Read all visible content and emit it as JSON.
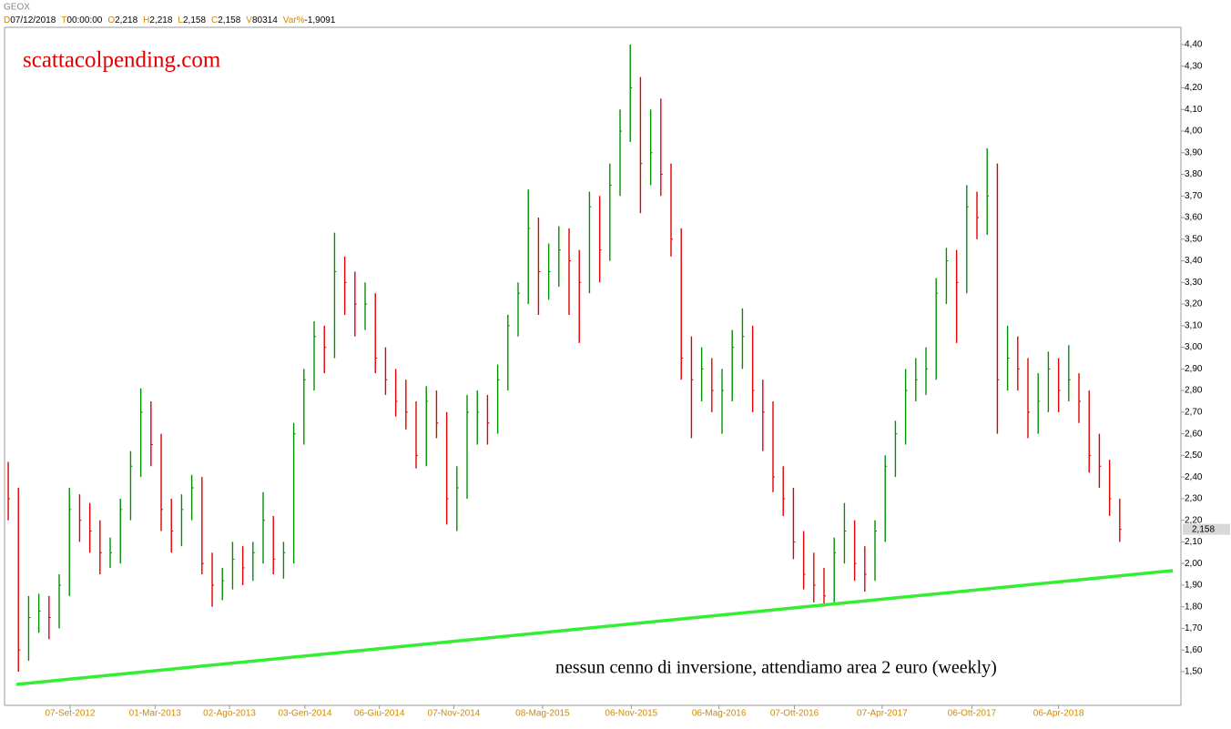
{
  "chart_data": {
    "type": "ohlc",
    "symbol": "GEOX",
    "header": [
      {
        "key": "D",
        "value": "07/12/2018"
      },
      {
        "key": "T",
        "value": "00:00:00"
      },
      {
        "key": "O",
        "value": "2,218"
      },
      {
        "key": "H",
        "value": "2,218"
      },
      {
        "key": "L",
        "value": "2,158"
      },
      {
        "key": "C",
        "value": "2,158"
      },
      {
        "key": "V",
        "value": "80314"
      },
      {
        "key": "Var%",
        "value": "-1,9091"
      }
    ],
    "watermark": "scattacolpending.com",
    "annotation": "nessun cenno di inversione, attendiamo area 2 euro (weekly)",
    "up_color": "#009000",
    "down_color": "#e00000",
    "high": [
      2.47,
      2.35,
      1.85,
      1.86,
      1.85,
      1.95,
      2.35,
      2.32,
      2.28,
      2.2,
      2.12,
      2.3,
      2.52,
      2.81,
      2.75,
      2.6,
      2.3,
      2.32,
      2.41,
      2.4,
      2.05,
      1.98,
      2.1,
      2.08,
      2.1,
      2.33,
      2.22,
      2.1,
      2.65,
      2.9,
      3.12,
      3.1,
      3.53,
      3.42,
      3.35,
      3.3,
      3.25,
      3.0,
      2.9,
      2.85,
      2.75,
      2.82,
      2.8,
      2.7,
      2.45,
      2.78,
      2.8,
      2.78,
      2.92,
      3.15,
      3.3,
      3.73,
      3.6,
      3.48,
      3.56,
      3.55,
      3.45,
      3.72,
      3.7,
      3.85,
      4.1,
      4.4,
      4.25,
      4.1,
      4.15,
      3.85,
      3.55,
      3.05,
      3.0,
      2.95,
      2.9,
      3.08,
      3.18,
      3.1,
      2.85,
      2.75,
      2.45,
      2.35,
      2.15,
      2.05,
      1.98,
      2.12,
      2.28,
      2.2,
      2.08,
      2.2,
      2.5,
      2.66,
      2.9,
      2.95,
      3.0,
      3.32,
      3.46,
      3.45,
      3.75,
      3.72,
      3.92,
      3.85,
      3.1,
      3.05,
      2.95,
      2.88,
      2.98,
      2.95,
      3.01,
      2.88,
      2.8,
      2.6,
      2.48,
      2.3
    ],
    "low": [
      2.2,
      1.5,
      1.55,
      1.68,
      1.65,
      1.7,
      1.85,
      2.1,
      2.05,
      1.95,
      1.98,
      2.0,
      2.2,
      2.4,
      2.45,
      2.15,
      2.05,
      2.08,
      2.2,
      1.95,
      1.8,
      1.83,
      1.88,
      1.9,
      1.92,
      2.0,
      1.95,
      1.93,
      2.0,
      2.55,
      2.8,
      2.88,
      2.95,
      3.15,
      3.05,
      3.08,
      2.88,
      2.78,
      2.68,
      2.62,
      2.44,
      2.45,
      2.58,
      2.18,
      2.15,
      2.3,
      2.55,
      2.55,
      2.6,
      2.8,
      3.05,
      3.2,
      3.15,
      3.22,
      3.28,
      3.15,
      3.02,
      3.25,
      3.3,
      3.4,
      3.7,
      3.95,
      3.62,
      3.75,
      3.7,
      3.42,
      2.85,
      2.58,
      2.75,
      2.7,
      2.6,
      2.75,
      2.9,
      2.7,
      2.52,
      2.33,
      2.22,
      2.02,
      1.88,
      1.82,
      1.8,
      1.82,
      2.0,
      1.92,
      1.87,
      1.92,
      2.1,
      2.4,
      2.55,
      2.75,
      2.78,
      2.85,
      3.2,
      3.02,
      3.25,
      3.5,
      3.52,
      2.6,
      2.8,
      2.8,
      2.58,
      2.6,
      2.7,
      2.7,
      2.75,
      2.65,
      2.42,
      2.35,
      2.22,
      2.1
    ],
    "close": [
      2.3,
      1.6,
      1.75,
      1.78,
      1.75,
      1.9,
      2.25,
      2.2,
      2.15,
      2.05,
      2.05,
      2.25,
      2.45,
      2.7,
      2.55,
      2.25,
      2.15,
      2.25,
      2.35,
      2.0,
      1.9,
      1.92,
      2.02,
      1.98,
      2.05,
      2.2,
      2.02,
      2.05,
      2.6,
      2.85,
      3.05,
      3.0,
      3.35,
      3.3,
      3.2,
      3.2,
      2.95,
      2.85,
      2.75,
      2.7,
      2.5,
      2.75,
      2.65,
      2.3,
      2.35,
      2.7,
      2.7,
      2.65,
      2.85,
      3.1,
      3.25,
      3.55,
      3.35,
      3.35,
      3.45,
      3.4,
      3.3,
      3.65,
      3.45,
      3.75,
      4.0,
      4.2,
      3.85,
      3.9,
      3.8,
      3.5,
      2.95,
      2.85,
      2.9,
      2.8,
      2.8,
      3.0,
      3.05,
      2.8,
      2.7,
      2.4,
      2.3,
      2.1,
      1.95,
      1.9,
      1.85,
      2.05,
      2.15,
      2.0,
      1.95,
      2.15,
      2.45,
      2.6,
      2.8,
      2.85,
      2.9,
      3.25,
      3.4,
      3.3,
      3.65,
      3.6,
      3.7,
      2.85,
      2.95,
      2.9,
      2.7,
      2.75,
      2.9,
      2.8,
      2.85,
      2.75,
      2.5,
      2.45,
      2.3,
      2.158
    ],
    "last_price": {
      "value": 2.158,
      "label": "2,158"
    },
    "trendline": {
      "x": [
        0.8,
        114.2
      ],
      "y": [
        1.441,
        1.967
      ],
      "color": "#33ee33"
    },
    "xlim": [
      -0.36,
      115
    ],
    "xticks": [
      {
        "value": 6.07,
        "label": "07-Set-2012"
      },
      {
        "value": 14.4,
        "label": "01-Mar-2013"
      },
      {
        "value": 21.7,
        "label": "02-Ago-2013"
      },
      {
        "value": 29.1,
        "label": "03-Gen-2014"
      },
      {
        "value": 36.4,
        "label": "06-Giu-2014"
      },
      {
        "value": 43.7,
        "label": "07-Nov-2014"
      },
      {
        "value": 52.4,
        "label": "08-Mag-2015"
      },
      {
        "value": 61.1,
        "label": "06-Nov-2015"
      },
      {
        "value": 69.7,
        "label": "06-Mag-2016"
      },
      {
        "value": 77.1,
        "label": "07-Ott-2016"
      },
      {
        "value": 85.7,
        "label": "07-Apr-2017"
      },
      {
        "value": 94.5,
        "label": "06-Ott-2017"
      },
      {
        "value": 103,
        "label": "06-Apr-2018"
      }
    ],
    "ylim": [
      1.344,
      4.48
    ],
    "yticks": [
      {
        "value": 1.5,
        "label": "1,50"
      },
      {
        "value": 1.6,
        "label": "1,60"
      },
      {
        "value": 1.7,
        "label": "1,70"
      },
      {
        "value": 1.8,
        "label": "1,80"
      },
      {
        "value": 1.9,
        "label": "1,90"
      },
      {
        "value": 2.0,
        "label": "2,00"
      },
      {
        "value": 2.1,
        "label": "2,10"
      },
      {
        "value": 2.2,
        "label": "2,20"
      },
      {
        "value": 2.3,
        "label": "2,30"
      },
      {
        "value": 2.4,
        "label": "2,40"
      },
      {
        "value": 2.5,
        "label": "2,50"
      },
      {
        "value": 2.6,
        "label": "2,60"
      },
      {
        "value": 2.7,
        "label": "2,70"
      },
      {
        "value": 2.8,
        "label": "2,80"
      },
      {
        "value": 2.9,
        "label": "2,90"
      },
      {
        "value": 3.0,
        "label": "3,00"
      },
      {
        "value": 3.1,
        "label": "3,10"
      },
      {
        "value": 3.2,
        "label": "3,20"
      },
      {
        "value": 3.3,
        "label": "3,30"
      },
      {
        "value": 3.4,
        "label": "3,40"
      },
      {
        "value": 3.5,
        "label": "3,50"
      },
      {
        "value": 3.6,
        "label": "3,60"
      },
      {
        "value": 3.7,
        "label": "3,70"
      },
      {
        "value": 3.8,
        "label": "3,80"
      },
      {
        "value": 3.9,
        "label": "3,90"
      },
      {
        "value": 4.0,
        "label": "4,00"
      },
      {
        "value": 4.1,
        "label": "4,10"
      },
      {
        "value": 4.2,
        "label": "4,20"
      },
      {
        "value": 4.3,
        "label": "4,30"
      },
      {
        "value": 4.4,
        "label": "4,40"
      }
    ],
    "grid": false
  }
}
